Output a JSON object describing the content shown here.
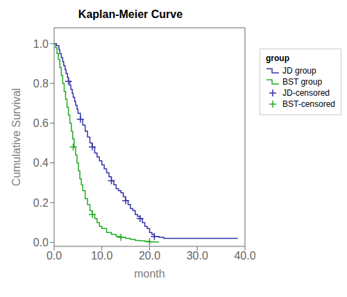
{
  "chart_data": {
    "type": "line",
    "title": "Kaplan-Meier Curve",
    "x_label": "month",
    "y_label": "Cumulative Survival",
    "xlim": [
      0,
      40
    ],
    "ylim": [
      -0.02,
      1.08
    ],
    "xticks": [
      {
        "value": 0,
        "label": "0.0"
      },
      {
        "value": 10,
        "label": "10.0"
      },
      {
        "value": 20,
        "label": "20.0"
      },
      {
        "value": 30,
        "label": "30.0"
      },
      {
        "value": 40,
        "label": "40.0"
      }
    ],
    "yticks": [
      {
        "value": 0,
        "label": "0.0"
      },
      0.2,
      0.4,
      0.6,
      0.8,
      {
        "value": 1,
        "label": "1.0"
      }
    ],
    "grid": false,
    "legend": "right",
    "legend_title": "group",
    "series": [
      {
        "name": "JD group",
        "type": "line",
        "line_style": "step",
        "color": "#3333aa",
        "x": [
          0,
          0.5,
          1.0,
          1.2,
          1.5,
          1.8,
          2.0,
          2.3,
          2.5,
          2.8,
          3.0,
          3.3,
          3.5,
          3.8,
          4.0,
          4.3,
          4.5,
          4.8,
          5.0,
          5.5,
          6.0,
          6.5,
          7.0,
          7.5,
          8.0,
          8.5,
          9.0,
          9.5,
          10.0,
          10.5,
          11.0,
          11.5,
          12.0,
          12.5,
          13.0,
          13.5,
          14.0,
          14.5,
          15.0,
          15.5,
          16.0,
          16.5,
          17.0,
          17.5,
          18.0,
          18.5,
          19.0,
          19.5,
          20.0,
          20.5,
          21.0,
          22.0,
          23.0,
          38.5
        ],
        "values": [
          1.0,
          0.99,
          0.97,
          0.95,
          0.93,
          0.91,
          0.89,
          0.87,
          0.85,
          0.83,
          0.81,
          0.79,
          0.77,
          0.75,
          0.73,
          0.71,
          0.69,
          0.67,
          0.65,
          0.62,
          0.59,
          0.56,
          0.53,
          0.5,
          0.48,
          0.45,
          0.43,
          0.41,
          0.39,
          0.37,
          0.35,
          0.33,
          0.31,
          0.29,
          0.27,
          0.26,
          0.25,
          0.23,
          0.21,
          0.19,
          0.17,
          0.16,
          0.14,
          0.13,
          0.12,
          0.1,
          0.08,
          0.07,
          0.05,
          0.04,
          0.03,
          0.025,
          0.02,
          0.02
        ]
      },
      {
        "name": "BST group",
        "type": "line",
        "line_style": "step",
        "color": "#22aa22",
        "x": [
          0,
          0.3,
          0.6,
          0.9,
          1.2,
          1.5,
          1.8,
          2.1,
          2.4,
          2.7,
          3.0,
          3.3,
          3.6,
          3.9,
          4.2,
          4.5,
          4.8,
          5.1,
          5.4,
          5.7,
          6.0,
          6.5,
          7.0,
          7.5,
          8.0,
          8.5,
          9.0,
          9.5,
          10.0,
          11.0,
          12.0,
          13.0,
          14.0,
          15.0,
          16.0,
          17.0,
          18.0,
          19.0,
          20.0,
          21.0,
          22.0
        ],
        "values": [
          1.0,
          0.98,
          0.95,
          0.92,
          0.88,
          0.84,
          0.8,
          0.76,
          0.72,
          0.68,
          0.64,
          0.6,
          0.56,
          0.52,
          0.48,
          0.44,
          0.4,
          0.36,
          0.32,
          0.29,
          0.26,
          0.22,
          0.19,
          0.16,
          0.14,
          0.12,
          0.1,
          0.08,
          0.07,
          0.05,
          0.04,
          0.03,
          0.025,
          0.02,
          0.015,
          0.01,
          0.008,
          0.005,
          0.003,
          0.002,
          0.002
        ]
      },
      {
        "name": "JD-censored",
        "type": "scatter",
        "marker": "plus",
        "color": "#3333aa",
        "x": [
          3.0,
          5.5,
          8.0,
          12.0,
          15.0,
          18.0,
          21.0
        ],
        "values": [
          0.81,
          0.62,
          0.48,
          0.31,
          0.21,
          0.12,
          0.03
        ]
      },
      {
        "name": "BST-censored",
        "type": "scatter",
        "marker": "plus",
        "color": "#22aa22",
        "x": [
          4.0,
          8.0,
          14.0,
          20.0
        ],
        "values": [
          0.48,
          0.14,
          0.025,
          0.003
        ]
      }
    ]
  }
}
